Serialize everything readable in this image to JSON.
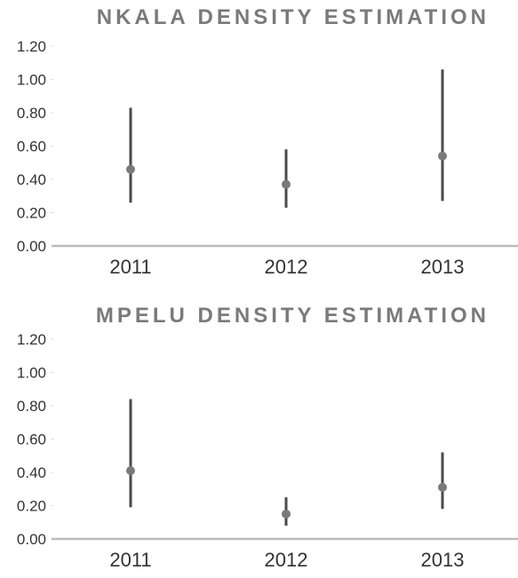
{
  "chart_data": [
    {
      "type": "scatter",
      "title": "NKALA DENSITY ESTIMATION",
      "categories": [
        "2011",
        "2012",
        "2013"
      ],
      "series": [
        {
          "point": [
            0.46,
            0.37,
            0.54
          ],
          "lower": [
            0.26,
            0.23,
            0.27
          ],
          "upper": [
            0.83,
            0.58,
            1.06
          ]
        }
      ],
      "yticks": [
        "0.00",
        "0.20",
        "0.40",
        "0.60",
        "0.80",
        "1.00",
        "1.20"
      ],
      "ylim": [
        0,
        1.2
      ],
      "xlabel": "",
      "ylabel": "",
      "grid": false,
      "colors": {
        "point": "#7a7a7a",
        "interval": "#4a4a4a",
        "axis": "#bbbbbb"
      }
    },
    {
      "type": "scatter",
      "title": "MPELU DENSITY ESTIMATION",
      "categories": [
        "2011",
        "2012",
        "2013"
      ],
      "series": [
        {
          "point": [
            0.41,
            0.15,
            0.31
          ],
          "lower": [
            0.19,
            0.08,
            0.18
          ],
          "upper": [
            0.84,
            0.25,
            0.52
          ]
        }
      ],
      "yticks": [
        "0.00",
        "0.20",
        "0.40",
        "0.60",
        "0.80",
        "1.00",
        "1.20"
      ],
      "ylim": [
        0,
        1.2
      ],
      "xlabel": "",
      "ylabel": "",
      "grid": false,
      "colors": {
        "point": "#7a7a7a",
        "interval": "#4a4a4a",
        "axis": "#bbbbbb"
      }
    }
  ]
}
